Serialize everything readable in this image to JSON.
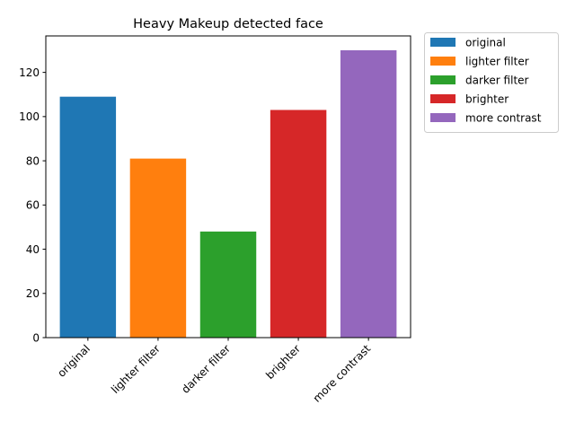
{
  "chart_data": {
    "type": "bar",
    "title": "Heavy Makeup detected face",
    "xlabel": "",
    "ylabel": "",
    "categories": [
      "original",
      "lighter filter",
      "darker filter",
      "brighter",
      "more contrast"
    ],
    "values": [
      109,
      81,
      48,
      103,
      130
    ],
    "colors": [
      "#1f77b4",
      "#ff7f0e",
      "#2ca02c",
      "#d62728",
      "#9467bd"
    ],
    "ylim": [
      0,
      136.5
    ],
    "yticks": [
      0,
      20,
      40,
      60,
      80,
      100,
      120
    ],
    "grid": false,
    "legend": {
      "placement": "outside-top-right",
      "entries": [
        "original",
        "lighter filter",
        "darker filter",
        "brighter",
        "more contrast"
      ]
    }
  }
}
